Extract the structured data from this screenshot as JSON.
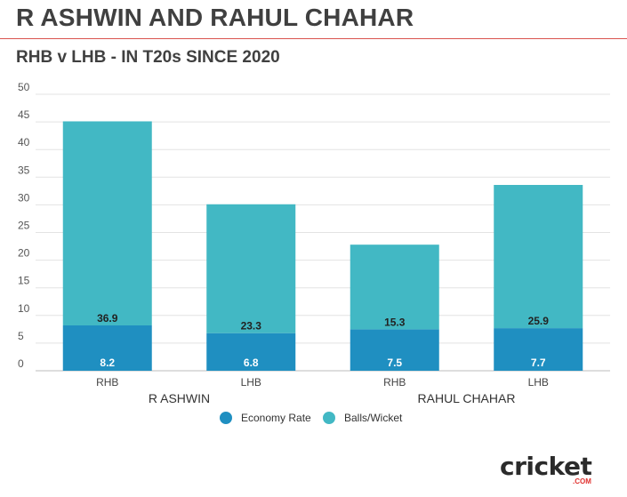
{
  "title": "R ASHWIN AND RAHUL CHAHAR",
  "subtitle": "RHB v LHB - IN T20s SINCE 2020",
  "logo": {
    "word": "cricket",
    "sub": ".COM"
  },
  "chart_data": {
    "type": "bar",
    "stacked": true,
    "yticks": [
      0,
      5,
      10,
      15,
      20,
      25,
      30,
      35,
      40,
      45,
      50
    ],
    "ylim": [
      0,
      50
    ],
    "grid": true,
    "legend_position": "bottom",
    "categories": [
      "RHB",
      "LHB",
      "RHB",
      "LHB"
    ],
    "groups": [
      {
        "label": "R ASHWIN",
        "categories": [
          "RHB",
          "LHB"
        ]
      },
      {
        "label": "RAHUL CHAHAR",
        "categories": [
          "RHB",
          "LHB"
        ]
      }
    ],
    "series": [
      {
        "name": "Economy Rate",
        "color": "#1f8fc1",
        "values": [
          8.2,
          6.8,
          7.5,
          7.7
        ],
        "labels": [
          "8.2",
          "6.8",
          "7.5",
          "7.7"
        ]
      },
      {
        "name": "Balls/Wicket",
        "color": "#42b8c4",
        "values": [
          36.9,
          23.3,
          15.3,
          25.9
        ],
        "labels": [
          "36.9",
          "23.3",
          "15.3",
          "25.9"
        ]
      }
    ]
  }
}
